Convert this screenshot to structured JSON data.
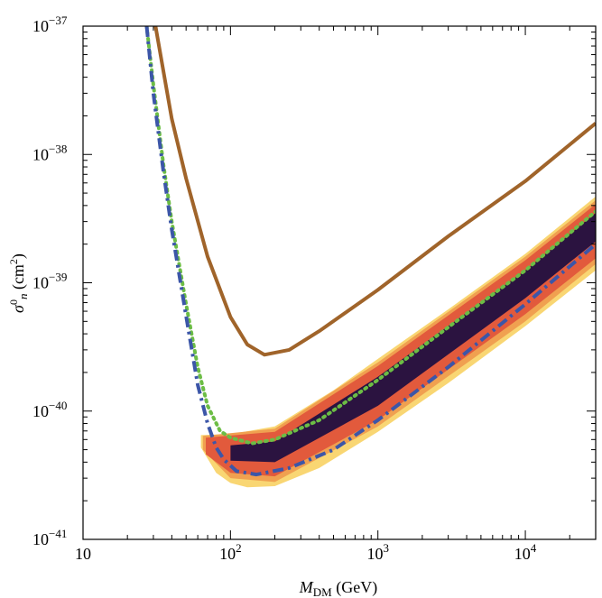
{
  "chart_data": {
    "type": "line",
    "title": "",
    "x_scale": "log",
    "y_scale": "log",
    "xlim": [
      10,
      30000
    ],
    "ylim": [
      1e-41,
      1e-37
    ],
    "x_ticks": [
      {
        "value": 10,
        "label": "10",
        "exp": ""
      },
      {
        "value": 100,
        "label": "10",
        "exp": "2"
      },
      {
        "value": 1000,
        "label": "10",
        "exp": "3"
      },
      {
        "value": 10000,
        "label": "10",
        "exp": "4"
      }
    ],
    "y_ticks": [
      {
        "value": 1e-41,
        "label": "10",
        "exp": "−41"
      },
      {
        "value": 1e-40,
        "label": "10",
        "exp": "−40"
      },
      {
        "value": 1e-39,
        "label": "10",
        "exp": "−39"
      },
      {
        "value": 1e-38,
        "label": "10",
        "exp": "−38"
      },
      {
        "value": 1e-37,
        "label": "10",
        "exp": "−37"
      }
    ],
    "xlabel": {
      "main": "M",
      "sub": "DM",
      "unit": " (GeV)"
    },
    "ylabel": {
      "sigma": "σ",
      "sup": "0",
      "sub": "n",
      "unit": " (cm",
      "unit_sup": "2",
      "unit_close": ")"
    },
    "bands": [
      {
        "name": "outer-yellow-band",
        "color": "#f9d673",
        "lower": [
          [
            63,
            5.2e-41
          ],
          [
            80,
            3.3e-41
          ],
          [
            100,
            2.75e-41
          ],
          [
            130,
            2.55e-41
          ],
          [
            200,
            2.6e-41
          ],
          [
            400,
            3.6e-41
          ],
          [
            1000,
            6.9e-41
          ],
          [
            3000,
            1.65e-40
          ],
          [
            10000,
            4.6e-40
          ],
          [
            30000,
            1.25e-39
          ]
        ],
        "upper": [
          [
            63,
            6.5e-41
          ],
          [
            100,
            6.6e-41
          ],
          [
            200,
            7.6e-41
          ],
          [
            500,
            1.45e-40
          ],
          [
            1000,
            2.55e-40
          ],
          [
            3000,
            6.2e-40
          ],
          [
            10000,
            1.68e-39
          ],
          [
            30000,
            4.7e-39
          ]
        ]
      },
      {
        "name": "orange-band",
        "color": "#f0a050",
        "lower": [
          [
            65,
            5e-41
          ],
          [
            100,
            3e-41
          ],
          [
            200,
            2.8e-41
          ],
          [
            1000,
            7.6e-41
          ],
          [
            10000,
            5e-40
          ],
          [
            30000,
            1.4e-39
          ]
        ],
        "upper": [
          [
            65,
            6.4e-41
          ],
          [
            200,
            7.3e-41
          ],
          [
            1000,
            2.4e-40
          ],
          [
            10000,
            1.6e-39
          ],
          [
            30000,
            4.4e-39
          ]
        ]
      },
      {
        "name": "red-band",
        "color": "#e25a3c",
        "lower": [
          [
            68,
            4.6e-41
          ],
          [
            100,
            3.3e-41
          ],
          [
            200,
            3.1e-41
          ],
          [
            1000,
            8.5e-41
          ],
          [
            10000,
            5.7e-40
          ],
          [
            30000,
            1.55e-39
          ]
        ],
        "upper": [
          [
            68,
            6.2e-41
          ],
          [
            200,
            6.9e-41
          ],
          [
            1000,
            2.25e-40
          ],
          [
            10000,
            1.5e-39
          ],
          [
            30000,
            4.1e-39
          ]
        ]
      },
      {
        "name": "dark-purple-band",
        "color": "#2b1340",
        "lower": [
          [
            100,
            4.1e-41
          ],
          [
            200,
            4e-41
          ],
          [
            1000,
            1.1e-40
          ],
          [
            10000,
            7.6e-40
          ],
          [
            30000,
            2.1e-39
          ]
        ],
        "upper": [
          [
            100,
            5.4e-41
          ],
          [
            200,
            5.8e-41
          ],
          [
            1000,
            1.85e-40
          ],
          [
            10000,
            1.25e-39
          ],
          [
            30000,
            3.5e-39
          ]
        ]
      }
    ],
    "series": [
      {
        "name": "brown-solid-curve",
        "color": "#a0642a",
        "style": "solid",
        "points": [
          [
            31,
            1e-37
          ],
          [
            40,
            1.9e-38
          ],
          [
            50,
            6.5e-39
          ],
          [
            70,
            1.6e-39
          ],
          [
            100,
            5.4e-40
          ],
          [
            130,
            3.3e-40
          ],
          [
            170,
            2.75e-40
          ],
          [
            250,
            3e-40
          ],
          [
            400,
            4.2e-40
          ],
          [
            1000,
            8.8e-40
          ],
          [
            3000,
            2.3e-39
          ],
          [
            10000,
            6.2e-39
          ],
          [
            30000,
            1.75e-38
          ]
        ]
      },
      {
        "name": "green-dotted-curve",
        "color": "#6cbd45",
        "style": "dotted",
        "points": [
          [
            27,
            1e-37
          ],
          [
            30,
            3.5e-38
          ],
          [
            35,
            8.5e-39
          ],
          [
            40,
            3e-39
          ],
          [
            50,
            6.8e-40
          ],
          [
            60,
            2.2e-40
          ],
          [
            70,
            1.1e-40
          ],
          [
            85,
            7e-41
          ],
          [
            100,
            6.2e-41
          ],
          [
            140,
            5.6e-41
          ],
          [
            200,
            6e-41
          ],
          [
            400,
            8.5e-41
          ],
          [
            1000,
            1.75e-40
          ],
          [
            3000,
            4.5e-40
          ],
          [
            10000,
            1.25e-39
          ],
          [
            30000,
            3.6e-39
          ]
        ]
      },
      {
        "name": "blue-dashdot-curve",
        "color": "#3c56a8",
        "style": "dashdot",
        "points": [
          [
            27,
            1e-37
          ],
          [
            30,
            3e-38
          ],
          [
            35,
            7.5e-39
          ],
          [
            40,
            2.6e-39
          ],
          [
            50,
            5.5e-40
          ],
          [
            60,
            1.6e-40
          ],
          [
            70,
            8e-41
          ],
          [
            80,
            5.2e-41
          ],
          [
            90,
            4.2e-41
          ],
          [
            110,
            3.4e-41
          ],
          [
            150,
            3.2e-41
          ],
          [
            250,
            3.6e-41
          ],
          [
            500,
            5e-41
          ],
          [
            1000,
            8.5e-41
          ],
          [
            3000,
            2.2e-40
          ],
          [
            10000,
            6.8e-40
          ],
          [
            30000,
            2e-39
          ]
        ]
      }
    ]
  }
}
